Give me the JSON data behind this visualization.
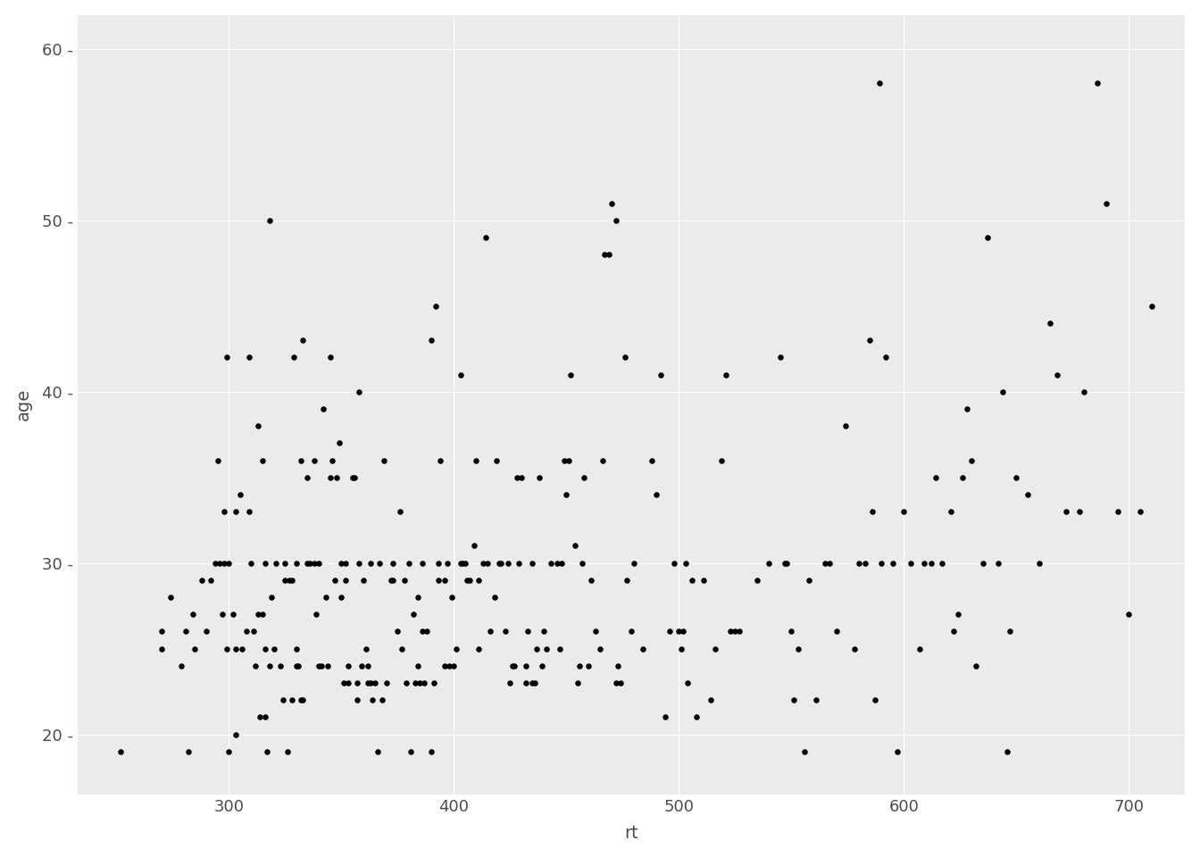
{
  "title": "",
  "xlabel": "rt",
  "ylabel": "age",
  "xlim": [
    233,
    725
  ],
  "ylim": [
    16.5,
    62
  ],
  "xticks": [
    300,
    400,
    500,
    600,
    700
  ],
  "yticks": [
    20,
    30,
    40,
    50,
    60
  ],
  "panel_background": "#EBEBEB",
  "figure_background": "#FFFFFF",
  "grid_color": "#FFFFFF",
  "point_color": "#000000",
  "point_size": 22,
  "tick_color": "#4D4D4D",
  "label_color": "#4D4D4D",
  "tick_fontsize": 13,
  "label_fontsize": 14,
  "points": [
    [
      252,
      19
    ],
    [
      270,
      25
    ],
    [
      270,
      26
    ],
    [
      274,
      28
    ],
    [
      279,
      24
    ],
    [
      281,
      26
    ],
    [
      282,
      19
    ],
    [
      284,
      27
    ],
    [
      285,
      25
    ],
    [
      288,
      29
    ],
    [
      290,
      26
    ],
    [
      292,
      29
    ],
    [
      294,
      30
    ],
    [
      295,
      36
    ],
    [
      296,
      30
    ],
    [
      297,
      27
    ],
    [
      298,
      30
    ],
    [
      298,
      33
    ],
    [
      299,
      25
    ],
    [
      299,
      42
    ],
    [
      300,
      19
    ],
    [
      300,
      30
    ],
    [
      302,
      27
    ],
    [
      303,
      25
    ],
    [
      303,
      33
    ],
    [
      303,
      20
    ],
    [
      305,
      34
    ],
    [
      306,
      25
    ],
    [
      308,
      26
    ],
    [
      309,
      33
    ],
    [
      309,
      42
    ],
    [
      310,
      30
    ],
    [
      311,
      26
    ],
    [
      312,
      24
    ],
    [
      313,
      27
    ],
    [
      313,
      38
    ],
    [
      314,
      21
    ],
    [
      315,
      27
    ],
    [
      315,
      36
    ],
    [
      316,
      25
    ],
    [
      316,
      30
    ],
    [
      316,
      21
    ],
    [
      317,
      19
    ],
    [
      318,
      24
    ],
    [
      318,
      50
    ],
    [
      319,
      28
    ],
    [
      320,
      25
    ],
    [
      321,
      30
    ],
    [
      323,
      24
    ],
    [
      324,
      22
    ],
    [
      325,
      30
    ],
    [
      325,
      29
    ],
    [
      326,
      19
    ],
    [
      327,
      29
    ],
    [
      328,
      29
    ],
    [
      328,
      22
    ],
    [
      329,
      42
    ],
    [
      330,
      25
    ],
    [
      330,
      30
    ],
    [
      330,
      24
    ],
    [
      331,
      24
    ],
    [
      332,
      22
    ],
    [
      332,
      36
    ],
    [
      333,
      43
    ],
    [
      333,
      22
    ],
    [
      335,
      30
    ],
    [
      335,
      35
    ],
    [
      336,
      30
    ],
    [
      338,
      30
    ],
    [
      338,
      36
    ],
    [
      339,
      27
    ],
    [
      340,
      30
    ],
    [
      340,
      24
    ],
    [
      341,
      24
    ],
    [
      342,
      39
    ],
    [
      343,
      28
    ],
    [
      344,
      24
    ],
    [
      345,
      42
    ],
    [
      345,
      35
    ],
    [
      346,
      36
    ],
    [
      347,
      29
    ],
    [
      348,
      35
    ],
    [
      349,
      37
    ],
    [
      350,
      28
    ],
    [
      350,
      30
    ],
    [
      351,
      23
    ],
    [
      352,
      29
    ],
    [
      352,
      30
    ],
    [
      353,
      24
    ],
    [
      353,
      23
    ],
    [
      355,
      35
    ],
    [
      356,
      35
    ],
    [
      357,
      22
    ],
    [
      357,
      23
    ],
    [
      358,
      40
    ],
    [
      358,
      30
    ],
    [
      359,
      24
    ],
    [
      360,
      29
    ],
    [
      361,
      25
    ],
    [
      362,
      24
    ],
    [
      362,
      23
    ],
    [
      363,
      23
    ],
    [
      363,
      30
    ],
    [
      364,
      22
    ],
    [
      365,
      23
    ],
    [
      366,
      19
    ],
    [
      367,
      30
    ],
    [
      368,
      22
    ],
    [
      369,
      36
    ],
    [
      370,
      23
    ],
    [
      372,
      29
    ],
    [
      373,
      30
    ],
    [
      373,
      29
    ],
    [
      375,
      26
    ],
    [
      376,
      33
    ],
    [
      377,
      25
    ],
    [
      378,
      29
    ],
    [
      379,
      23
    ],
    [
      380,
      30
    ],
    [
      381,
      19
    ],
    [
      382,
      27
    ],
    [
      383,
      23
    ],
    [
      384,
      24
    ],
    [
      384,
      28
    ],
    [
      385,
      23
    ],
    [
      386,
      30
    ],
    [
      386,
      26
    ],
    [
      387,
      23
    ],
    [
      388,
      26
    ],
    [
      390,
      43
    ],
    [
      390,
      19
    ],
    [
      391,
      23
    ],
    [
      392,
      45
    ],
    [
      393,
      29
    ],
    [
      393,
      30
    ],
    [
      394,
      36
    ],
    [
      396,
      24
    ],
    [
      396,
      29
    ],
    [
      397,
      30
    ],
    [
      398,
      24
    ],
    [
      399,
      28
    ],
    [
      400,
      24
    ],
    [
      401,
      25
    ],
    [
      403,
      41
    ],
    [
      403,
      30
    ],
    [
      404,
      30
    ],
    [
      405,
      30
    ],
    [
      406,
      29
    ],
    [
      407,
      29
    ],
    [
      409,
      31
    ],
    [
      410,
      36
    ],
    [
      411,
      29
    ],
    [
      411,
      25
    ],
    [
      413,
      30
    ],
    [
      414,
      49
    ],
    [
      415,
      30
    ],
    [
      416,
      26
    ],
    [
      418,
      28
    ],
    [
      419,
      36
    ],
    [
      420,
      30
    ],
    [
      421,
      30
    ],
    [
      423,
      26
    ],
    [
      424,
      30
    ],
    [
      425,
      23
    ],
    [
      426,
      24
    ],
    [
      427,
      24
    ],
    [
      428,
      35
    ],
    [
      429,
      30
    ],
    [
      430,
      35
    ],
    [
      432,
      23
    ],
    [
      432,
      24
    ],
    [
      433,
      26
    ],
    [
      435,
      23
    ],
    [
      435,
      30
    ],
    [
      436,
      23
    ],
    [
      437,
      25
    ],
    [
      438,
      35
    ],
    [
      439,
      24
    ],
    [
      440,
      26
    ],
    [
      441,
      25
    ],
    [
      443,
      30
    ],
    [
      446,
      30
    ],
    [
      447,
      25
    ],
    [
      448,
      30
    ],
    [
      449,
      36
    ],
    [
      450,
      34
    ],
    [
      451,
      36
    ],
    [
      452,
      41
    ],
    [
      454,
      31
    ],
    [
      455,
      23
    ],
    [
      456,
      24
    ],
    [
      457,
      30
    ],
    [
      458,
      35
    ],
    [
      460,
      24
    ],
    [
      461,
      29
    ],
    [
      463,
      26
    ],
    [
      465,
      25
    ],
    [
      466,
      36
    ],
    [
      467,
      48
    ],
    [
      469,
      48
    ],
    [
      470,
      51
    ],
    [
      472,
      23
    ],
    [
      472,
      50
    ],
    [
      473,
      24
    ],
    [
      474,
      23
    ],
    [
      476,
      42
    ],
    [
      477,
      29
    ],
    [
      479,
      26
    ],
    [
      480,
      30
    ],
    [
      484,
      25
    ],
    [
      488,
      36
    ],
    [
      490,
      34
    ],
    [
      492,
      41
    ],
    [
      494,
      21
    ],
    [
      496,
      26
    ],
    [
      498,
      30
    ],
    [
      500,
      26
    ],
    [
      501,
      25
    ],
    [
      502,
      26
    ],
    [
      503,
      30
    ],
    [
      504,
      23
    ],
    [
      506,
      29
    ],
    [
      508,
      21
    ],
    [
      511,
      29
    ],
    [
      514,
      22
    ],
    [
      516,
      25
    ],
    [
      519,
      36
    ],
    [
      521,
      41
    ],
    [
      523,
      26
    ],
    [
      525,
      26
    ],
    [
      527,
      26
    ],
    [
      535,
      29
    ],
    [
      540,
      30
    ],
    [
      545,
      42
    ],
    [
      547,
      30
    ],
    [
      548,
      30
    ],
    [
      550,
      26
    ],
    [
      551,
      22
    ],
    [
      553,
      25
    ],
    [
      556,
      19
    ],
    [
      558,
      29
    ],
    [
      561,
      22
    ],
    [
      565,
      30
    ],
    [
      567,
      30
    ],
    [
      570,
      26
    ],
    [
      574,
      38
    ],
    [
      578,
      25
    ],
    [
      580,
      30
    ],
    [
      583,
      30
    ],
    [
      585,
      43
    ],
    [
      586,
      33
    ],
    [
      587,
      22
    ],
    [
      589,
      58
    ],
    [
      590,
      30
    ],
    [
      592,
      42
    ],
    [
      595,
      30
    ],
    [
      597,
      19
    ],
    [
      600,
      33
    ],
    [
      603,
      30
    ],
    [
      607,
      25
    ],
    [
      609,
      30
    ],
    [
      612,
      30
    ],
    [
      614,
      35
    ],
    [
      617,
      30
    ],
    [
      621,
      33
    ],
    [
      622,
      26
    ],
    [
      624,
      27
    ],
    [
      626,
      35
    ],
    [
      628,
      39
    ],
    [
      630,
      36
    ],
    [
      632,
      24
    ],
    [
      635,
      30
    ],
    [
      637,
      49
    ],
    [
      642,
      30
    ],
    [
      644,
      40
    ],
    [
      646,
      19
    ],
    [
      647,
      26
    ],
    [
      650,
      35
    ],
    [
      655,
      34
    ],
    [
      660,
      30
    ],
    [
      665,
      44
    ],
    [
      668,
      41
    ],
    [
      672,
      33
    ],
    [
      678,
      33
    ],
    [
      680,
      40
    ],
    [
      686,
      58
    ],
    [
      690,
      51
    ],
    [
      695,
      33
    ],
    [
      700,
      27
    ],
    [
      705,
      33
    ],
    [
      710,
      45
    ]
  ]
}
